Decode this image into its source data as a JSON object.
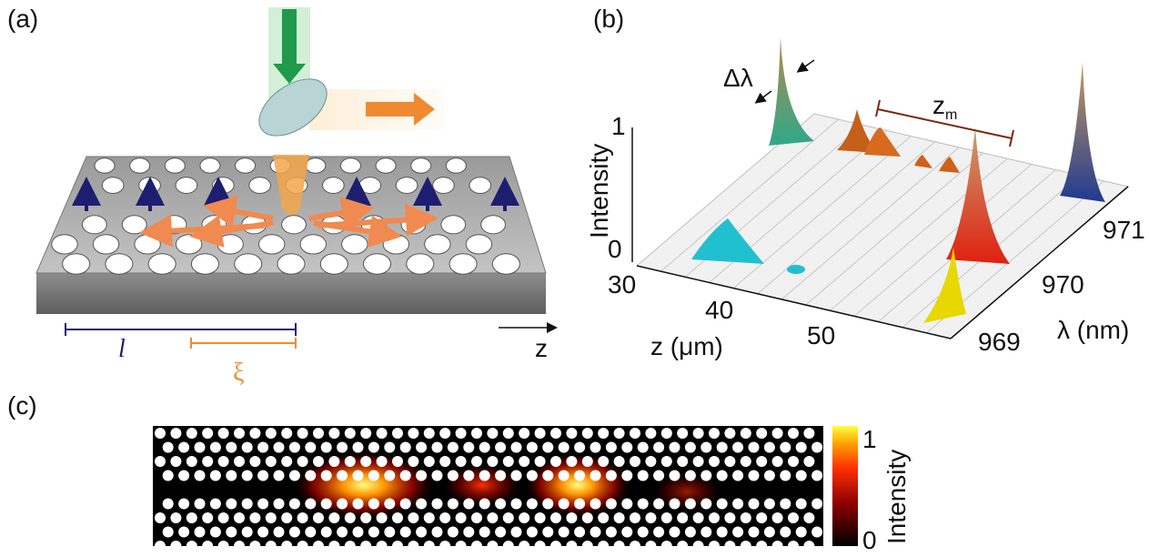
{
  "panel_a": {
    "label": "(a)",
    "length_label": "l",
    "xi_label": "ξ",
    "axis_label": "z"
  },
  "panel_b": {
    "label": "(b)",
    "delta_label": "Δλ",
    "zm_label": {
      "main": "z",
      "sub": "m"
    },
    "y_axis_title": "Intensity",
    "y_ticks": [
      0,
      1
    ],
    "z_ticks": [
      30,
      40,
      50
    ],
    "z_axis_title": "z (μm)",
    "lambda_ticks": [
      969,
      970,
      971
    ],
    "lambda_axis_title": "λ (nm)"
  },
  "panel_c": {
    "label": "(c)",
    "colorbar_ticks": [
      1,
      0
    ],
    "colorbar_title": "Intensity"
  }
}
